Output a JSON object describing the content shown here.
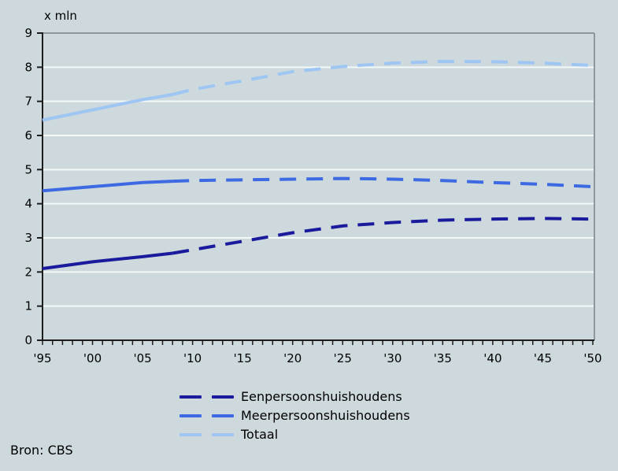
{
  "source": "Bron: CBS",
  "colors": {
    "background": "#cdd9dd",
    "gridline": "#f3f8f8",
    "plot_border": "#8e979b",
    "axis": "#1d1d1d",
    "text": "#000000",
    "series_dark_blue": "#191a9c",
    "series_medium_blue": "#3d6ae2",
    "series_light_blue": "#9fc6f3"
  },
  "chart_data": {
    "type": "line",
    "title": "",
    "xlabel": "",
    "ylabel": "x mln",
    "xlim": [
      1995,
      2050
    ],
    "ylim": [
      0,
      9
    ],
    "grid": true,
    "legend_position": "bottom",
    "x": [
      1995,
      2000,
      2005,
      2008,
      2010,
      2015,
      2020,
      2025,
      2030,
      2035,
      2040,
      2045,
      2050
    ],
    "series": [
      {
        "name": "Eenpersoonshuishoudens",
        "color": "#191a9c",
        "values": [
          2.1,
          2.3,
          2.45,
          2.55,
          2.65,
          2.9,
          3.15,
          3.35,
          3.45,
          3.52,
          3.55,
          3.57,
          3.55
        ]
      },
      {
        "name": "Meerpersoonshuishoudens",
        "color": "#3d6ae2",
        "values": [
          4.38,
          4.5,
          4.62,
          4.66,
          4.68,
          4.7,
          4.72,
          4.74,
          4.72,
          4.68,
          4.62,
          4.57,
          4.5
        ]
      },
      {
        "name": "Totaal",
        "color": "#9fc6f3",
        "values": [
          6.45,
          6.75,
          7.05,
          7.2,
          7.35,
          7.6,
          7.87,
          8.02,
          8.12,
          8.17,
          8.16,
          8.12,
          8.05
        ]
      }
    ],
    "forecast_from": 2008,
    "line_style_observed": "solid",
    "line_style_forecast": "dashed",
    "y_ticks": [
      0,
      1,
      2,
      3,
      4,
      5,
      6,
      7,
      8,
      9
    ],
    "x_tick_step_years": 1,
    "x_label_step_years": 5,
    "x_tick_labels": [
      "'95",
      "'00",
      "'05",
      "'10",
      "'15",
      "'20",
      "'25",
      "'30",
      "'35",
      "'40",
      "'45",
      "'50"
    ]
  }
}
